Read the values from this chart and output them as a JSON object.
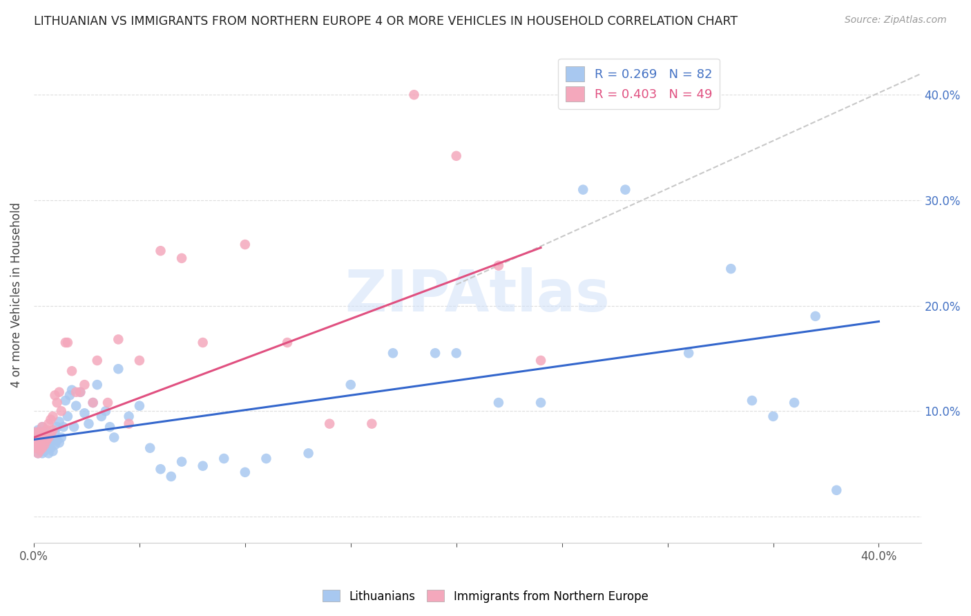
{
  "title": "LITHUANIAN VS IMMIGRANTS FROM NORTHERN EUROPE 4 OR MORE VEHICLES IN HOUSEHOLD CORRELATION CHART",
  "source": "Source: ZipAtlas.com",
  "ylabel": "4 or more Vehicles in Household",
  "xlim": [
    0.0,
    0.42
  ],
  "ylim": [
    -0.025,
    0.445
  ],
  "blue_r": 0.269,
  "blue_n": 82,
  "pink_r": 0.403,
  "pink_n": 49,
  "blue_color": "#a8c8f0",
  "pink_color": "#f4a8bc",
  "blue_line_color": "#3366cc",
  "pink_line_color": "#e05080",
  "dash_color": "#c8c8c8",
  "watermark_color": "#d0e0f8",
  "ytick_vals": [
    0.0,
    0.1,
    0.2,
    0.3,
    0.4
  ],
  "ytick_labels": [
    "",
    "10.0%",
    "20.0%",
    "30.0%",
    "40.0%"
  ],
  "xtick_vals": [
    0.0,
    0.05,
    0.1,
    0.15,
    0.2,
    0.25,
    0.3,
    0.35,
    0.4
  ],
  "xtick_labels": [
    "0.0%",
    "",
    "",
    "",
    "",
    "",
    "",
    "",
    "40.0%"
  ],
  "blue_pts_x": [
    0.001,
    0.001,
    0.001,
    0.001,
    0.002,
    0.002,
    0.002,
    0.002,
    0.002,
    0.003,
    0.003,
    0.003,
    0.003,
    0.004,
    0.004,
    0.004,
    0.004,
    0.004,
    0.005,
    0.005,
    0.005,
    0.005,
    0.006,
    0.006,
    0.006,
    0.007,
    0.007,
    0.007,
    0.008,
    0.008,
    0.009,
    0.009,
    0.01,
    0.01,
    0.011,
    0.011,
    0.012,
    0.012,
    0.013,
    0.014,
    0.015,
    0.016,
    0.017,
    0.018,
    0.019,
    0.02,
    0.022,
    0.024,
    0.026,
    0.028,
    0.03,
    0.032,
    0.034,
    0.036,
    0.038,
    0.04,
    0.045,
    0.05,
    0.055,
    0.06,
    0.065,
    0.07,
    0.08,
    0.09,
    0.1,
    0.11,
    0.13,
    0.15,
    0.17,
    0.19,
    0.2,
    0.22,
    0.24,
    0.26,
    0.28,
    0.31,
    0.34,
    0.36,
    0.38,
    0.37,
    0.35,
    0.33
  ],
  "blue_pts_y": [
    0.065,
    0.07,
    0.075,
    0.08,
    0.06,
    0.068,
    0.072,
    0.078,
    0.082,
    0.063,
    0.07,
    0.075,
    0.08,
    0.06,
    0.065,
    0.073,
    0.078,
    0.085,
    0.062,
    0.068,
    0.074,
    0.08,
    0.065,
    0.072,
    0.078,
    0.06,
    0.068,
    0.078,
    0.065,
    0.075,
    0.062,
    0.074,
    0.068,
    0.08,
    0.072,
    0.085,
    0.07,
    0.09,
    0.075,
    0.085,
    0.11,
    0.095,
    0.115,
    0.12,
    0.085,
    0.105,
    0.118,
    0.098,
    0.088,
    0.108,
    0.125,
    0.095,
    0.1,
    0.085,
    0.075,
    0.14,
    0.095,
    0.105,
    0.065,
    0.045,
    0.038,
    0.052,
    0.048,
    0.055,
    0.042,
    0.055,
    0.06,
    0.125,
    0.155,
    0.155,
    0.155,
    0.108,
    0.108,
    0.31,
    0.31,
    0.155,
    0.11,
    0.108,
    0.025,
    0.19,
    0.095,
    0.235
  ],
  "pink_pts_x": [
    0.001,
    0.001,
    0.001,
    0.002,
    0.002,
    0.002,
    0.003,
    0.003,
    0.003,
    0.004,
    0.004,
    0.004,
    0.005,
    0.005,
    0.006,
    0.006,
    0.007,
    0.007,
    0.008,
    0.008,
    0.009,
    0.009,
    0.01,
    0.011,
    0.012,
    0.013,
    0.015,
    0.016,
    0.018,
    0.02,
    0.022,
    0.024,
    0.028,
    0.03,
    0.035,
    0.04,
    0.045,
    0.05,
    0.06,
    0.07,
    0.08,
    0.1,
    0.12,
    0.14,
    0.16,
    0.18,
    0.2,
    0.22,
    0.24
  ],
  "pink_pts_y": [
    0.065,
    0.072,
    0.08,
    0.06,
    0.068,
    0.078,
    0.063,
    0.07,
    0.08,
    0.065,
    0.075,
    0.085,
    0.068,
    0.078,
    0.072,
    0.082,
    0.075,
    0.088,
    0.078,
    0.092,
    0.082,
    0.095,
    0.115,
    0.108,
    0.118,
    0.1,
    0.165,
    0.165,
    0.138,
    0.118,
    0.118,
    0.125,
    0.108,
    0.148,
    0.108,
    0.168,
    0.088,
    0.148,
    0.252,
    0.245,
    0.165,
    0.258,
    0.165,
    0.088,
    0.088,
    0.4,
    0.342,
    0.238,
    0.148
  ],
  "blue_line": {
    "x0": 0.0,
    "x1": 0.4,
    "y0": 0.073,
    "y1": 0.185
  },
  "pink_line": {
    "x0": 0.0,
    "x1": 0.24,
    "y0": 0.075,
    "y1": 0.255
  },
  "dash_line": {
    "x0": 0.2,
    "x1": 0.42,
    "y0": 0.22,
    "y1": 0.42
  }
}
